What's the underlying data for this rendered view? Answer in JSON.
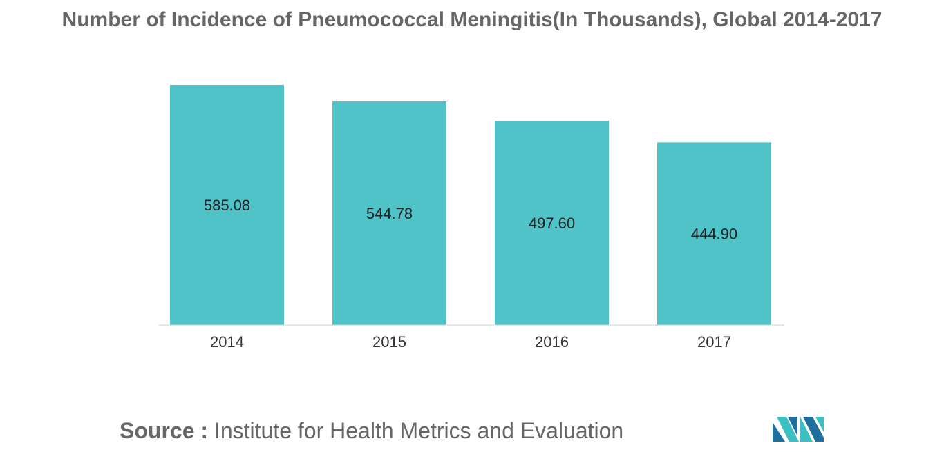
{
  "chart_data": {
    "type": "bar",
    "title": "Number of Incidence of Pneumococcal Meningitis(In Thousands), Global 2014-2017",
    "categories": [
      "2014",
      "2015",
      "2016",
      "2017"
    ],
    "values": [
      585.08,
      544.78,
      497.6,
      444.9
    ],
    "value_labels": [
      "585.08",
      "544.78",
      "497.60",
      "444.90"
    ],
    "xlabel": "",
    "ylabel": "",
    "ylim": [
      0,
      585.08
    ],
    "grid": false,
    "legend": "none",
    "bar_color": "#4fc3c8"
  },
  "source": {
    "label": "Source :",
    "text": "Institute for Health Metrics and Evaluation"
  },
  "colors": {
    "bar": "#4fc3c8",
    "title_text": "#666666",
    "axis": "#cccccc",
    "logo_dark": "#1f6f9e",
    "logo_light": "#3cc0c4"
  },
  "logo": {
    "icon": "mordor-logo-icon"
  }
}
